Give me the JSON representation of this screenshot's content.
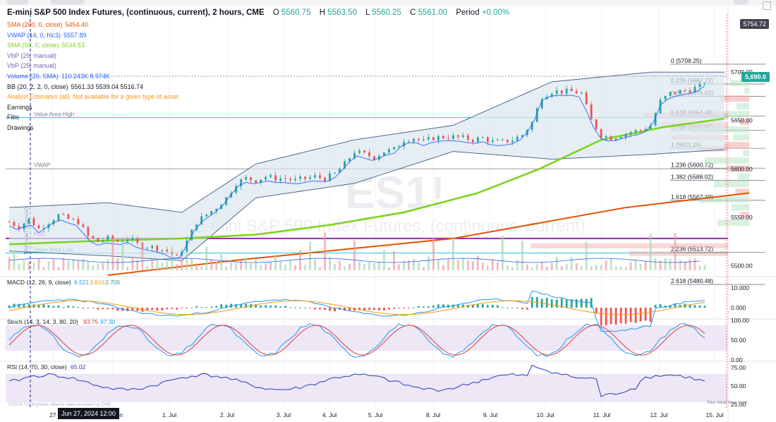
{
  "header": {
    "symbol": "E-mini S&P 500 Index Futures, (continuous, current), 2 hours, CME",
    "open_label": "O",
    "open": "5560.75",
    "high_label": "H",
    "high": "5563.50",
    "low_label": "L",
    "low": "5560.25",
    "close_label": "C",
    "close": "5561.00",
    "period_label": "Period",
    "period": "+0.00%"
  },
  "legend": [
    {
      "name": "SMA (200, 0, close)",
      "values": "5454.40",
      "color": "#e65100"
    },
    {
      "name": "VWAP (14, 0, hlc3)",
      "values": "5557.89",
      "color": "#2962ff"
    },
    {
      "name": "SMA (50, 0, close)",
      "values": "5534.53",
      "color": "#7ed321"
    },
    {
      "name": "VbP (25, manual)",
      "values": "",
      "color": "#7b5fb5"
    },
    {
      "name": "VbP (25, manual)",
      "values": "",
      "color": "#7b5fb5"
    },
    {
      "name": "Volume (20, SMA)",
      "values": "110.243K 8.974K",
      "color": "#2962ff"
    },
    {
      "name": "BB (20, 2, 2, 0, close)",
      "values": "5561.33 5539.04 5516.74",
      "color": "#131722"
    },
    {
      "name": "Analyst Estimates (all)",
      "values": "Not available for a given type of asset",
      "color": "#f7931a"
    },
    {
      "name": "Earnings",
      "values": "",
      "color": "#131722"
    },
    {
      "name": "Fibs",
      "values": "",
      "color": "#131722"
    },
    {
      "name": "Drawings",
      "values": "",
      "color": "#131722"
    }
  ],
  "price_axis": {
    "ticks": [
      "5700.00",
      "5650.00",
      "5600.00",
      "5550.00",
      "5500.00"
    ],
    "top_label": "5754.72",
    "current_label": "5,690.0"
  },
  "macd_axis": {
    "ticks": [
      "10.000",
      "0.000"
    ]
  },
  "stoch_axis": {
    "ticks": [
      "100.00",
      "50.00",
      "0.00"
    ]
  },
  "rsi_axis": {
    "ticks": [
      "75.00",
      "50.00",
      "25.00"
    ]
  },
  "panel_labels": {
    "macd": "MACD (12, 26, 9, close)",
    "macd_values": [
      "6.521",
      "3.816",
      "2.705"
    ],
    "stoch": "Stoch (14, 3, 14, 3, 80, 20)",
    "stoch_values": [
      "93.75",
      "97.30"
    ],
    "rsi": "RSI (14, 70, 30, close)",
    "rsi_values": [
      "65.02"
    ]
  },
  "chart_labels": {
    "value_area_high": "Value Area High",
    "value_area_low": "Value Area Low",
    "poc": "POC",
    "vwap": "VWAP",
    "vbp_start": "VbP start (manual)",
    "watermark_symbol": "ES1!",
    "watermark_desc": "E-mini S&P 500 Index Futures, (continuous, current)"
  },
  "crosshair_date": "Jun 27, 2024 12:00",
  "copyright": "©2024 TradingView, Market data provided by CME",
  "local_time_label": "Your local time zone",
  "colors": {
    "up": "#26a69a",
    "down": "#ef5350",
    "sma200": "#e65100",
    "sma50": "#7ed321",
    "vwap": "#2962ff",
    "bb": "#3d5a80",
    "bb_fill": "#dbe7f0",
    "poc": "#9c27b0",
    "macd": "#2196f3",
    "signal": "#ff9800",
    "stoch_k": "#2196f3",
    "stoch_d": "#e53935",
    "rsi": "#2b3bb5",
    "band": "#ede7f6"
  },
  "chart_data": [
    {
      "type": "candlestick",
      "title": "E-mini S&P 500 Index Futures, (continuous, current), 2 hours, CME",
      "x": [
        "27",
        "28. Jun",
        "1. Jul",
        "2. Jul",
        "3. Jul",
        "4. Jul",
        "5. Jul",
        "8. Jul",
        "9. Jul",
        "10. Jul",
        "11. Jul",
        "12. Jul",
        "15. Jul"
      ],
      "ylim": [
        5490,
        5760
      ],
      "close_path": [
        [
          0,
          5545
        ],
        [
          4,
          5540
        ],
        [
          8,
          5548
        ],
        [
          12,
          5538
        ],
        [
          16,
          5545
        ],
        [
          20,
          5552
        ],
        [
          24,
          5548
        ],
        [
          28,
          5545
        ],
        [
          32,
          5530
        ],
        [
          36,
          5525
        ],
        [
          40,
          5528
        ],
        [
          44,
          5525
        ],
        [
          48,
          5528
        ],
        [
          52,
          5522
        ],
        [
          56,
          5520
        ],
        [
          60,
          5518
        ],
        [
          64,
          5515
        ],
        [
          68,
          5508
        ],
        [
          72,
          5525
        ],
        [
          76,
          5545
        ],
        [
          80,
          5553
        ],
        [
          84,
          5560
        ],
        [
          88,
          5570
        ],
        [
          92,
          5585
        ],
        [
          96,
          5590
        ],
        [
          100,
          5588
        ],
        [
          104,
          5592
        ],
        [
          108,
          5590
        ],
        [
          112,
          5590
        ],
        [
          116,
          5588
        ],
        [
          120,
          5590
        ],
        [
          124,
          5592
        ],
        [
          128,
          5590
        ],
        [
          132,
          5595
        ],
        [
          136,
          5605
        ],
        [
          140,
          5618
        ],
        [
          144,
          5615
        ],
        [
          148,
          5612
        ],
        [
          152,
          5618
        ],
        [
          156,
          5620
        ],
        [
          160,
          5630
        ],
        [
          164,
          5632
        ],
        [
          168,
          5628
        ],
        [
          172,
          5632
        ],
        [
          176,
          5633
        ],
        [
          180,
          5633
        ],
        [
          184,
          5632
        ],
        [
          188,
          5630
        ],
        [
          192,
          5632
        ],
        [
          196,
          5628
        ],
        [
          200,
          5628
        ],
        [
          204,
          5630
        ],
        [
          208,
          5635
        ],
        [
          212,
          5648
        ],
        [
          216,
          5675
        ],
        [
          220,
          5680
        ],
        [
          224,
          5680
        ],
        [
          228,
          5680
        ],
        [
          232,
          5678
        ],
        [
          236,
          5650
        ],
        [
          240,
          5635
        ],
        [
          244,
          5632
        ],
        [
          248,
          5635
        ],
        [
          252,
          5638
        ],
        [
          256,
          5640
        ],
        [
          260,
          5645
        ],
        [
          264,
          5670
        ],
        [
          268,
          5678
        ],
        [
          272,
          5680
        ],
        [
          276,
          5682
        ],
        [
          280,
          5685
        ],
        [
          282,
          5690
        ]
      ],
      "series": [
        {
          "name": "SMA (200, 0, close)",
          "points": [
            [
              40,
              5490
            ],
            [
              90,
              5505
            ],
            [
              180,
              5528
            ],
            [
              250,
              5560
            ],
            [
              300,
              5575
            ]
          ]
        },
        {
          "name": "SMA (50, 0, close)",
          "points": [
            [
              0,
              5522
            ],
            [
              30,
              5525
            ],
            [
              70,
              5528
            ],
            [
              100,
              5532
            ],
            [
              130,
              5542
            ],
            [
              160,
              5555
            ],
            [
              190,
              5575
            ],
            [
              215,
              5600
            ],
            [
              240,
              5630
            ],
            [
              265,
              5643
            ],
            [
              290,
              5652
            ]
          ]
        },
        {
          "name": "BB (20, 2, 2, 0, close)",
          "upper": [
            [
              0,
              5560
            ],
            [
              40,
              5565
            ],
            [
              70,
              5555
            ],
            [
              100,
              5605
            ],
            [
              140,
              5630
            ],
            [
              180,
              5645
            ],
            [
              220,
              5690
            ],
            [
              260,
              5700
            ],
            [
              290,
              5700
            ]
          ],
          "lower": [
            [
              0,
              5515
            ],
            [
              40,
              5510
            ],
            [
              70,
              5505
            ],
            [
              100,
              5570
            ],
            [
              140,
              5585
            ],
            [
              180,
              5618
            ],
            [
              220,
              5610
            ],
            [
              260,
              5615
            ],
            [
              290,
              5620
            ]
          ]
        }
      ],
      "fib_levels": [
        {
          "ratio": "0",
          "price": "5708.25"
        },
        {
          "ratio": "0.236",
          "price": "5687.72"
        },
        {
          "ratio": "0.382",
          "price": "5675.02"
        },
        {
          "ratio": "0.618",
          "price": "5654.48"
        },
        {
          "ratio": "0.786",
          "price": "5639.87"
        },
        {
          "ratio": "1",
          "price": "5621.25"
        },
        {
          "ratio": "1.236",
          "price": "5600.72"
        },
        {
          "ratio": "1.382",
          "price": "5588.02"
        },
        {
          "ratio": "1.618",
          "price": "5567.48"
        },
        {
          "ratio": "2.236",
          "price": "5513.72"
        },
        {
          "ratio": "2.618",
          "price": "5480.48"
        }
      ],
      "value_area_high": 5653,
      "value_area_low": 5513,
      "poc": 5528
    },
    {
      "type": "bar",
      "title": "Volume (20, SMA)",
      "values": "varies",
      "volume_profile": [
        12,
        30,
        8,
        45,
        20,
        60,
        15,
        90,
        25,
        40,
        10,
        70,
        35,
        18,
        55,
        22,
        80,
        28,
        14,
        50
      ]
    },
    {
      "type": "histogram",
      "title": "MACD (12, 26, 9, close)",
      "ylim": [
        -5,
        15
      ],
      "values": [
        6.521,
        3.816,
        2.705
      ]
    },
    {
      "type": "line",
      "title": "Stoch (14, 3, 14, 3, 80, 20)",
      "ylim": [
        0,
        100
      ],
      "values": [
        93.75,
        97.3
      ]
    },
    {
      "type": "line",
      "title": "RSI (14, 70, 30, close)",
      "ylim": [
        25,
        80
      ],
      "values": [
        65.02
      ]
    }
  ]
}
